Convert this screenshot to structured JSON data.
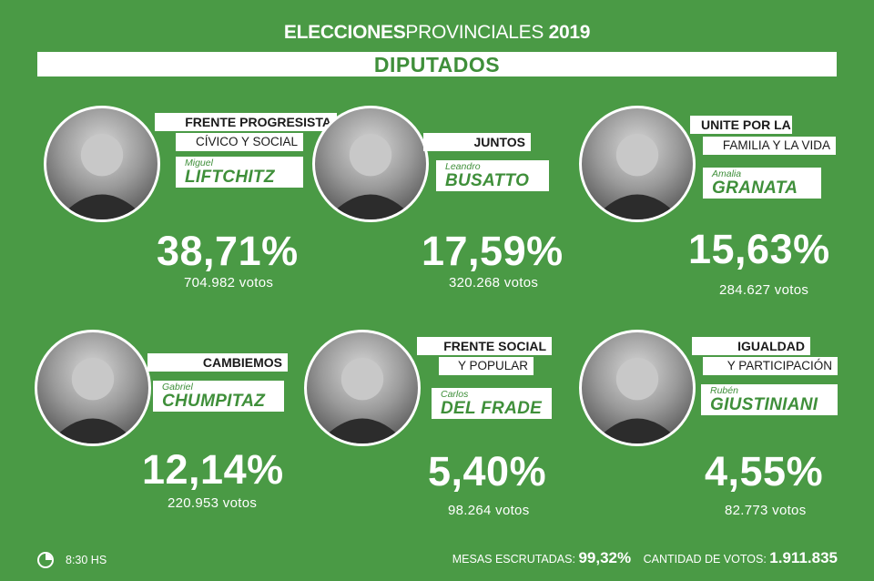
{
  "header": {
    "title_bold": "ELECCIONES",
    "title_light": "PROVINCIALES",
    "title_year": "2019",
    "category": "DIPUTADOS"
  },
  "candidates": [
    {
      "party_line1": "FRENTE PROGRESISTA",
      "party_line2": "CÍVICO Y SOCIAL",
      "first_name": "Miguel",
      "last_name": "LIFTCHITZ",
      "percent": "38,71%",
      "votes": "704.982 votos",
      "share": 38.71
    },
    {
      "party_line1": "JUNTOS",
      "party_line2": "",
      "first_name": "Leandro",
      "last_name": "BUSATTO",
      "percent": "17,59%",
      "votes": "320.268 votos",
      "share": 17.59
    },
    {
      "party_line1": "UNITE POR LA",
      "party_line2": "FAMILIA Y LA VIDA",
      "first_name": "Amalia",
      "last_name": "GRANATA",
      "percent": "15,63%",
      "votes": "284.627 votos",
      "share": 15.63
    },
    {
      "party_line1": "CAMBIEMOS",
      "party_line2": "",
      "first_name": "Gabriel",
      "last_name": "CHUMPITAZ",
      "percent": "12,14%",
      "votes": "220.953 votos",
      "share": 12.14
    },
    {
      "party_line1": "FRENTE SOCIAL",
      "party_line2": "Y POPULAR",
      "first_name": "Carlos",
      "last_name": "DEL FRADE",
      "percent": "5,40%",
      "votes": "98.264 votos",
      "share": 5.4
    },
    {
      "party_line1": "IGUALDAD",
      "party_line2": "Y PARTICIPACIÓN",
      "first_name": "Rubén",
      "last_name": "GIUSTINIANI",
      "percent": "4,55%",
      "votes": "82.773 votos",
      "share": 4.55
    }
  ],
  "footer": {
    "time": "8:30 HS",
    "mesas_label": "MESAS ESCRUTADAS:",
    "mesas_value": "99,32%",
    "votes_label": "CANTIDAD DE VOTOS:",
    "votes_value": "1.911.835",
    "clock_icon": "clock-icon"
  },
  "colors": {
    "background": "#4a9a45",
    "accent_green": "#3f8f3a",
    "white": "#ffffff",
    "dark_text": "#1a1a1a"
  }
}
